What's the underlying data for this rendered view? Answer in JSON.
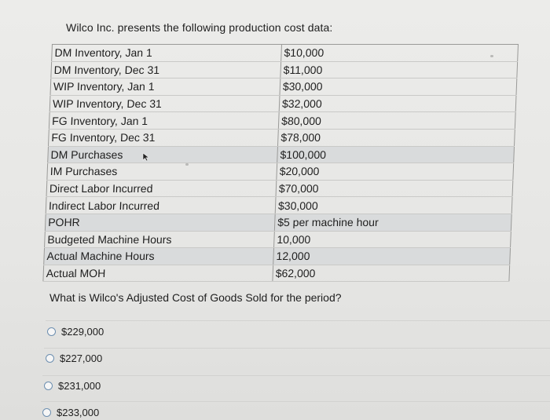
{
  "intro": "Wilco Inc. presents the following production cost data:",
  "rows": [
    {
      "label": "DM Inventory, Jan 1",
      "value": "$10,000"
    },
    {
      "label": "DM Inventory, Dec 31",
      "value": "$11,000"
    },
    {
      "label": "WIP Inventory, Jan 1",
      "value": "$30,000"
    },
    {
      "label": "WIP Inventory, Dec 31",
      "value": "$32,000"
    },
    {
      "label": "FG Inventory, Jan 1",
      "value": "$80,000"
    },
    {
      "label": "FG Inventory, Dec 31",
      "value": "$78,000"
    },
    {
      "label": "DM Purchases",
      "value": "$100,000"
    },
    {
      "label": "IM Purchases",
      "value": "$20,000"
    },
    {
      "label": "Direct Labor Incurred",
      "value": "$70,000"
    },
    {
      "label": "Indirect Labor Incurred",
      "value": "$30,000"
    },
    {
      "label": "POHR",
      "value": "$5 per machine hour"
    },
    {
      "label": "Budgeted Machine Hours",
      "value": "10,000"
    },
    {
      "label": "Actual Machine Hours",
      "value": "12,000"
    },
    {
      "label": "Actual MOH",
      "value": "$62,000"
    }
  ],
  "question": "What is Wilco's Adjusted Cost of Goods Sold for the period?",
  "options": [
    {
      "label": "$229,000"
    },
    {
      "label": "$227,000"
    },
    {
      "label": "$231,000"
    },
    {
      "label": "$233,000"
    }
  ],
  "colors": {
    "background": "#e9e9e7",
    "table_border": "#9a9a98",
    "shaded_row": "#d9dbdc",
    "radio_border": "#6d8fb0"
  },
  "icons": {
    "cursor": "mouse-pointer-icon"
  }
}
